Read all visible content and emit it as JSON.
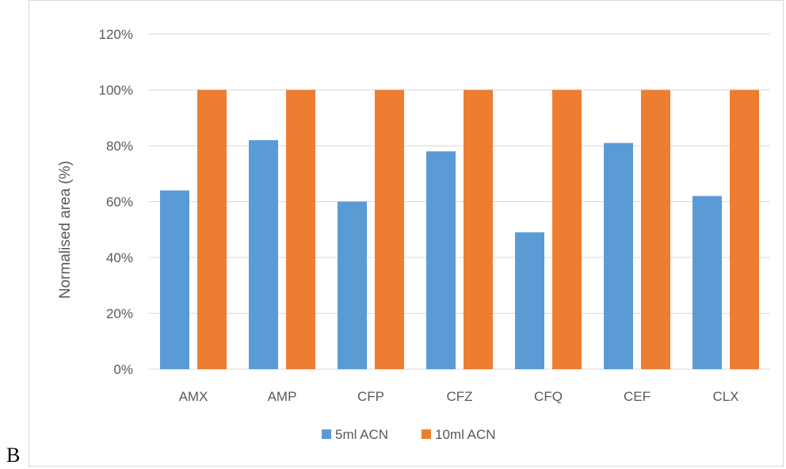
{
  "figure": {
    "panel_label": "B"
  },
  "chart_data": {
    "type": "bar",
    "title": "",
    "xlabel": "",
    "ylabel": "Normalised area (%)",
    "categories": [
      "AMX",
      "AMP",
      "CFP",
      "CFZ",
      "CFQ",
      "CEF",
      "CLX"
    ],
    "series": [
      {
        "name": "5ml ACN",
        "color": "#5b9bd5",
        "values": [
          64,
          82,
          60,
          78,
          49,
          81,
          62
        ]
      },
      {
        "name": "10ml ACN",
        "color": "#ed7d31",
        "values": [
          100,
          100,
          100,
          100,
          100,
          100,
          100
        ]
      }
    ],
    "ylim": [
      0,
      120
    ],
    "yticks": [
      0,
      20,
      40,
      60,
      80,
      100,
      120
    ],
    "ytick_suffix": "%",
    "grid": true,
    "legend_position": "bottom"
  }
}
